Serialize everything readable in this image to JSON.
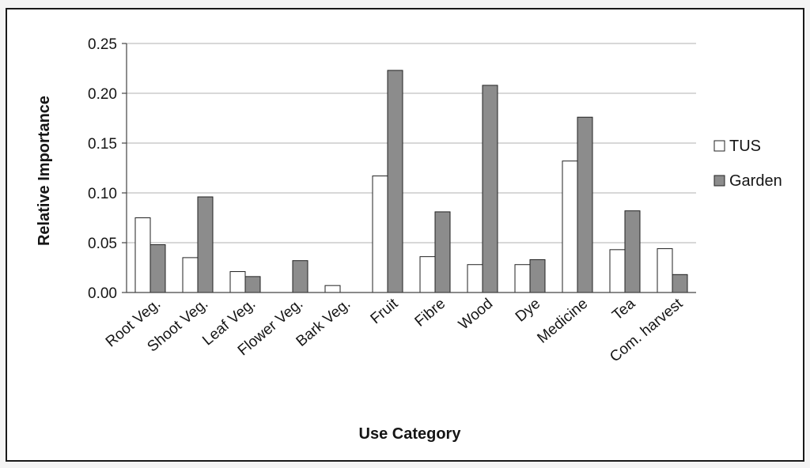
{
  "chart_data": {
    "type": "bar",
    "xlabel": "Use Category",
    "ylabel": "Relative Importance",
    "ylim": [
      0,
      0.25
    ],
    "yticks": [
      "0.00",
      "0.05",
      "0.10",
      "0.15",
      "0.20",
      "0.25"
    ],
    "grid": "horizontal",
    "legend_position": "right",
    "categories": [
      "Root Veg.",
      "Shoot Veg.",
      "Leaf Veg.",
      "Flower Veg.",
      "Bark Veg.",
      "Fruit",
      "Fibre",
      "Wood",
      "Dye",
      "Medicine",
      "Tea",
      "Com. harvest"
    ],
    "series": [
      {
        "name": "TUS",
        "color": "#ffffff",
        "values": [
          0.075,
          0.035,
          0.021,
          0.0,
          0.007,
          0.117,
          0.036,
          0.028,
          0.028,
          0.132,
          0.043,
          0.044
        ]
      },
      {
        "name": "Garden",
        "color": "#8c8c8c",
        "values": [
          0.048,
          0.096,
          0.016,
          0.032,
          0.0,
          0.223,
          0.081,
          0.208,
          0.033,
          0.176,
          0.082,
          0.018
        ]
      }
    ]
  }
}
